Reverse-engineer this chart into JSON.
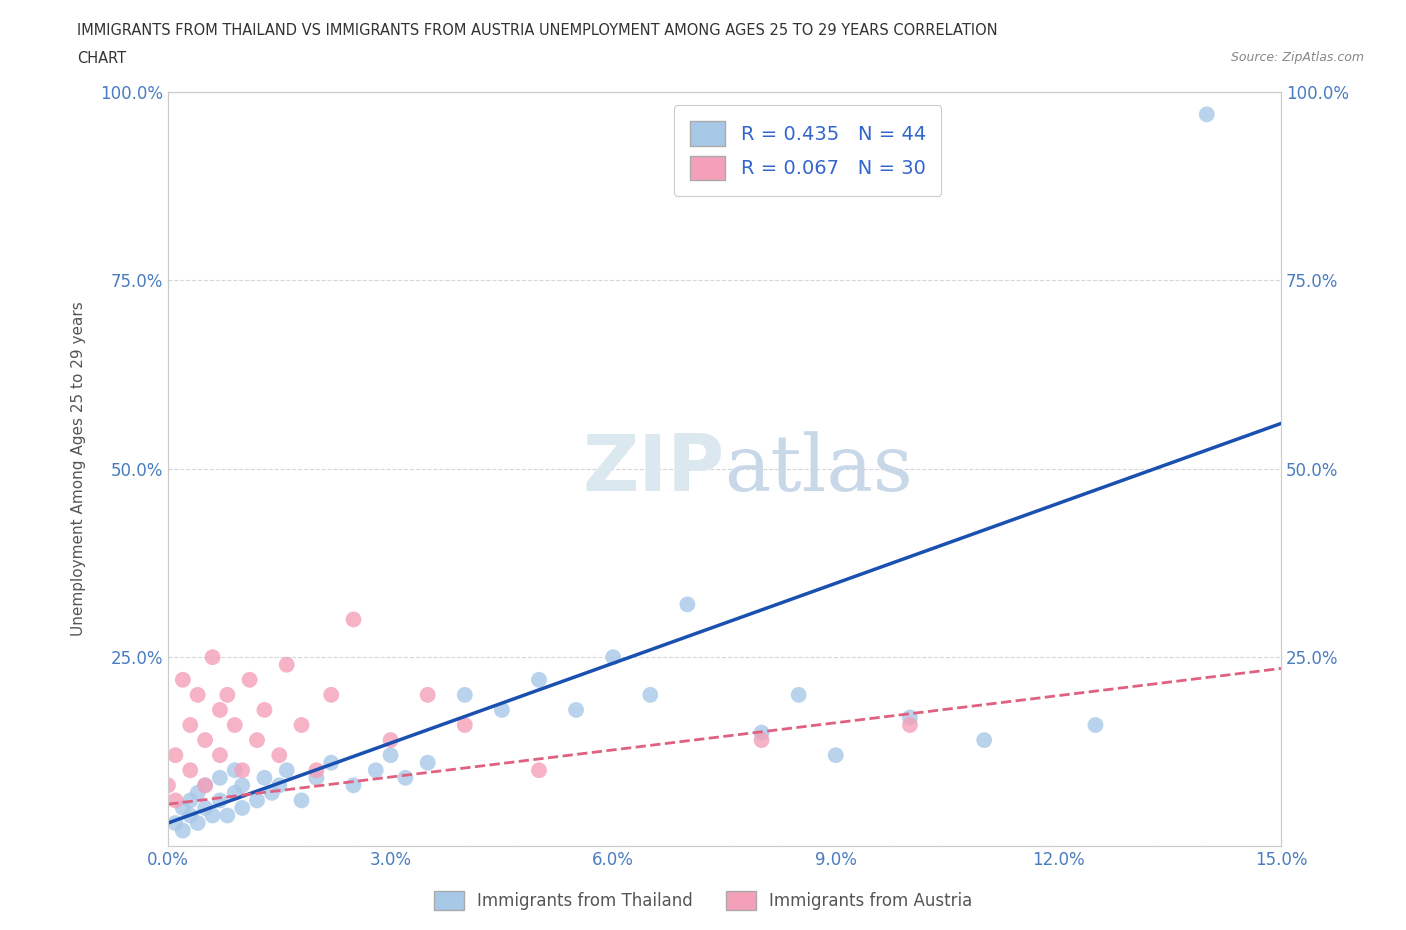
{
  "title_line1": "IMMIGRANTS FROM THAILAND VS IMMIGRANTS FROM AUSTRIA UNEMPLOYMENT AMONG AGES 25 TO 29 YEARS CORRELATION",
  "title_line2": "CHART",
  "source": "Source: ZipAtlas.com",
  "xlabel": "",
  "ylabel": "Unemployment Among Ages 25 to 29 years",
  "legend_label1": "Immigrants from Thailand",
  "legend_label2": "Immigrants from Austria",
  "R1": 0.435,
  "N1": 44,
  "R2": 0.067,
  "N2": 30,
  "xlim": [
    0.0,
    0.15
  ],
  "ylim": [
    0.0,
    1.0
  ],
  "xticks": [
    0.0,
    0.03,
    0.06,
    0.09,
    0.12,
    0.15
  ],
  "yticks": [
    0.0,
    0.25,
    0.5,
    0.75,
    1.0
  ],
  "xtick_labels": [
    "0.0%",
    "3.0%",
    "6.0%",
    "9.0%",
    "12.0%",
    "15.0%"
  ],
  "ytick_labels": [
    "",
    "25.0%",
    "50.0%",
    "75.0%",
    "100.0%"
  ],
  "color_thailand": "#a8c8e8",
  "color_austria": "#f4a0b8",
  "color_trend1": "#1a50b0",
  "color_trend2": "#e06080",
  "watermark_color": "#dce8f0",
  "trend1_x0": 0.0,
  "trend1_y0": 0.03,
  "trend1_x1": 0.15,
  "trend1_y1": 0.56,
  "trend2_x0": 0.0,
  "trend2_y0": 0.055,
  "trend2_x1": 0.15,
  "trend2_y1": 0.235,
  "thailand_x": [
    0.001,
    0.002,
    0.002,
    0.003,
    0.003,
    0.004,
    0.004,
    0.005,
    0.005,
    0.006,
    0.007,
    0.007,
    0.008,
    0.009,
    0.009,
    0.01,
    0.01,
    0.012,
    0.013,
    0.014,
    0.015,
    0.016,
    0.018,
    0.02,
    0.022,
    0.025,
    0.028,
    0.03,
    0.032,
    0.035,
    0.04,
    0.045,
    0.05,
    0.055,
    0.06,
    0.065,
    0.07,
    0.08,
    0.085,
    0.09,
    0.1,
    0.11,
    0.125,
    0.14
  ],
  "thailand_y": [
    0.03,
    0.02,
    0.05,
    0.04,
    0.06,
    0.03,
    0.07,
    0.05,
    0.08,
    0.04,
    0.06,
    0.09,
    0.04,
    0.07,
    0.1,
    0.05,
    0.08,
    0.06,
    0.09,
    0.07,
    0.08,
    0.1,
    0.06,
    0.09,
    0.11,
    0.08,
    0.1,
    0.12,
    0.09,
    0.11,
    0.2,
    0.18,
    0.22,
    0.18,
    0.25,
    0.2,
    0.32,
    0.15,
    0.2,
    0.12,
    0.17,
    0.14,
    0.16,
    0.97
  ],
  "austria_x": [
    0.0,
    0.001,
    0.001,
    0.002,
    0.003,
    0.003,
    0.004,
    0.005,
    0.005,
    0.006,
    0.007,
    0.007,
    0.008,
    0.009,
    0.01,
    0.011,
    0.012,
    0.013,
    0.015,
    0.016,
    0.018,
    0.02,
    0.022,
    0.025,
    0.03,
    0.035,
    0.04,
    0.05,
    0.08,
    0.1
  ],
  "austria_y": [
    0.08,
    0.12,
    0.06,
    0.22,
    0.16,
    0.1,
    0.2,
    0.14,
    0.08,
    0.25,
    0.18,
    0.12,
    0.2,
    0.16,
    0.1,
    0.22,
    0.14,
    0.18,
    0.12,
    0.24,
    0.16,
    0.1,
    0.2,
    0.3,
    0.14,
    0.2,
    0.16,
    0.1,
    0.14,
    0.16
  ]
}
